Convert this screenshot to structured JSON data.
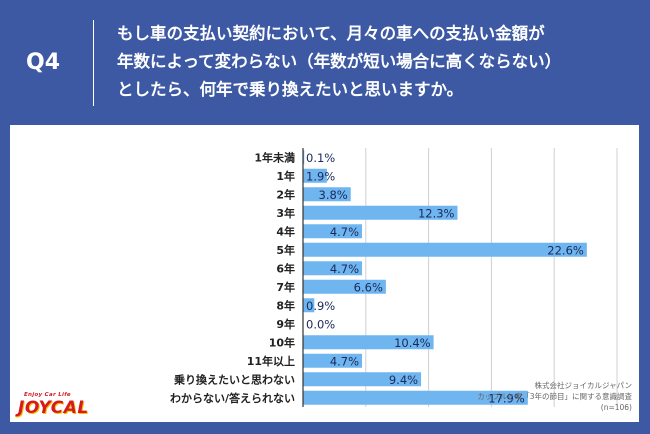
{
  "question": {
    "number": "Q4",
    "lines": [
      "もし車の支払い契約において、月々の車への支払い金額が",
      "年数によって変わらない（年数が短い場合に高くならない）",
      "としたら、何年で乗り換えたいと思いますか。"
    ]
  },
  "chart_data": {
    "type": "bar",
    "orientation": "horizontal",
    "categories": [
      "1年未満",
      "1年",
      "2年",
      "3年",
      "4年",
      "5年",
      "6年",
      "7年",
      "8年",
      "9年",
      "10年",
      "11年以上",
      "乗り換えたいと思わない",
      "わからない/答えられない"
    ],
    "values": [
      0.1,
      1.9,
      3.8,
      12.3,
      4.7,
      22.6,
      4.7,
      6.6,
      0.9,
      0.0,
      10.4,
      4.7,
      9.4,
      17.9
    ],
    "value_labels": [
      "0.1%",
      "1.9%",
      "3.8%",
      "12.3%",
      "4.7%",
      "22.6%",
      "4.7%",
      "6.6%",
      "0.9%",
      "0.0%",
      "10.4%",
      "4.7%",
      "9.4%",
      "17.9%"
    ],
    "xlim": [
      0,
      25
    ],
    "grid": true,
    "title": "",
    "xlabel": "",
    "ylabel": "",
    "bar_color": "#6fb6f0"
  },
  "source": {
    "line1": "株式会社ジョイカルジャパン",
    "line2": "カップルと車「3年の節目」に関する意識調査",
    "line3": "(n=106)"
  },
  "logo": {
    "tagline": "Enjoy Car Life",
    "name": "JOYCAL",
    "colors": [
      "#d71920",
      "#f2c200"
    ]
  },
  "colors": {
    "background": "#3d59a3",
    "panel": "#ffffff",
    "grid": "#d0d0d0",
    "axis": "#333333"
  }
}
